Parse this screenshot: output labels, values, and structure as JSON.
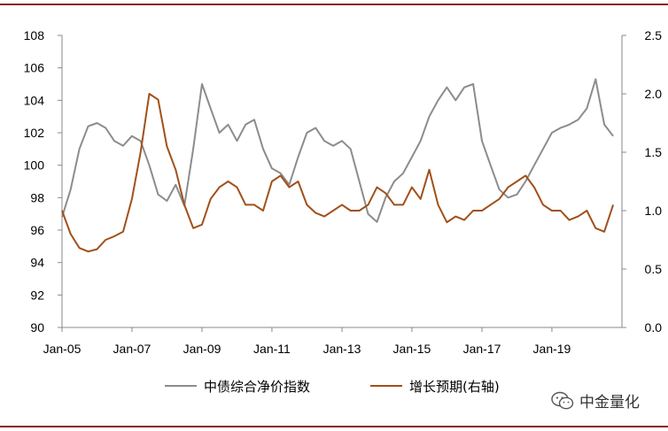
{
  "chart_data": {
    "type": "line",
    "title": "",
    "x_ticks": [
      "Jan-05",
      "Jan-07",
      "Jan-09",
      "Jan-11",
      "Jan-13",
      "Jan-15",
      "Jan-17",
      "Jan-19"
    ],
    "y_left": {
      "range": [
        90,
        108
      ],
      "ticks": [
        "90",
        "92",
        "94",
        "96",
        "98",
        "100",
        "102",
        "104",
        "106",
        "108"
      ]
    },
    "y_right": {
      "range": [
        0.0,
        2.5
      ],
      "ticks": [
        "0.0",
        "0.5",
        "1.0",
        "1.5",
        "2.0",
        "2.5"
      ]
    },
    "grid": false,
    "legend_position": "bottom",
    "series": [
      {
        "name": "中债综合净价指数",
        "axis": "left",
        "color": "#8c8c8c",
        "x": [
          "2005-01",
          "2005-04",
          "2005-07",
          "2005-10",
          "2006-01",
          "2006-04",
          "2006-07",
          "2006-10",
          "2007-01",
          "2007-04",
          "2007-07",
          "2007-10",
          "2008-01",
          "2008-04",
          "2008-07",
          "2008-10",
          "2009-01",
          "2009-04",
          "2009-07",
          "2009-10",
          "2010-01",
          "2010-04",
          "2010-07",
          "2010-10",
          "2011-01",
          "2011-04",
          "2011-07",
          "2011-10",
          "2012-01",
          "2012-04",
          "2012-07",
          "2012-10",
          "2013-01",
          "2013-04",
          "2013-07",
          "2013-10",
          "2014-01",
          "2014-04",
          "2014-07",
          "2014-10",
          "2015-01",
          "2015-04",
          "2015-07",
          "2015-10",
          "2016-01",
          "2016-04",
          "2016-07",
          "2016-10",
          "2017-01",
          "2017-04",
          "2017-07",
          "2017-10",
          "2018-01",
          "2018-04",
          "2018-07",
          "2018-10",
          "2019-01",
          "2019-04",
          "2019-07",
          "2019-10",
          "2020-01",
          "2020-04",
          "2020-07",
          "2020-10"
        ],
        "values": [
          96.8,
          98.5,
          101.0,
          102.4,
          102.6,
          102.3,
          101.5,
          101.2,
          101.8,
          101.5,
          100.0,
          98.2,
          97.8,
          98.8,
          97.5,
          101.0,
          105.0,
          103.5,
          102.0,
          102.5,
          101.5,
          102.5,
          102.8,
          101.0,
          99.8,
          99.5,
          98.8,
          100.5,
          102.0,
          102.3,
          101.5,
          101.2,
          101.5,
          101.0,
          99.0,
          97.0,
          96.5,
          98.0,
          99.0,
          99.5,
          100.5,
          101.5,
          103.0,
          104.0,
          104.8,
          104.0,
          104.8,
          105.0,
          101.5,
          100.0,
          98.5,
          98.0,
          98.2,
          99.0,
          100.0,
          101.0,
          102.0,
          102.3,
          102.5,
          102.8,
          103.5,
          105.3,
          102.5,
          101.8
        ]
      },
      {
        "name": "增长预期(右轴)",
        "axis": "right",
        "color": "#a0501a",
        "x": [
          "2005-01",
          "2005-04",
          "2005-07",
          "2005-10",
          "2006-01",
          "2006-04",
          "2006-07",
          "2006-10",
          "2007-01",
          "2007-04",
          "2007-07",
          "2007-10",
          "2008-01",
          "2008-04",
          "2008-07",
          "2008-10",
          "2009-01",
          "2009-04",
          "2009-07",
          "2009-10",
          "2010-01",
          "2010-04",
          "2010-07",
          "2010-10",
          "2011-01",
          "2011-04",
          "2011-07",
          "2011-10",
          "2012-01",
          "2012-04",
          "2012-07",
          "2012-10",
          "2013-01",
          "2013-04",
          "2013-07",
          "2013-10",
          "2014-01",
          "2014-04",
          "2014-07",
          "2014-10",
          "2015-01",
          "2015-04",
          "2015-07",
          "2015-10",
          "2016-01",
          "2016-04",
          "2016-07",
          "2016-10",
          "2017-01",
          "2017-04",
          "2017-07",
          "2017-10",
          "2018-01",
          "2018-04",
          "2018-07",
          "2018-10",
          "2019-01",
          "2019-04",
          "2019-07",
          "2019-10",
          "2020-01",
          "2020-04",
          "2020-07",
          "2020-10"
        ],
        "values": [
          1.0,
          0.8,
          0.68,
          0.65,
          0.67,
          0.75,
          0.78,
          0.82,
          1.1,
          1.5,
          2.0,
          1.95,
          1.55,
          1.35,
          1.05,
          0.85,
          0.88,
          1.1,
          1.2,
          1.25,
          1.2,
          1.05,
          1.05,
          1.0,
          1.25,
          1.3,
          1.2,
          1.25,
          1.05,
          0.98,
          0.95,
          1.0,
          1.05,
          1.0,
          1.0,
          1.05,
          1.2,
          1.15,
          1.05,
          1.05,
          1.2,
          1.1,
          1.35,
          1.05,
          0.9,
          0.95,
          0.92,
          1.0,
          1.0,
          1.05,
          1.1,
          1.2,
          1.25,
          1.3,
          1.2,
          1.05,
          1.0,
          1.0,
          0.92,
          0.95,
          1.0,
          0.85,
          0.82,
          1.05
        ]
      }
    ]
  },
  "legend": {
    "series1_label": "中债综合净价指数",
    "series2_label": "增长预期(右轴)"
  },
  "watermark": {
    "text": "中金量化",
    "icon": "wechat-icon"
  }
}
